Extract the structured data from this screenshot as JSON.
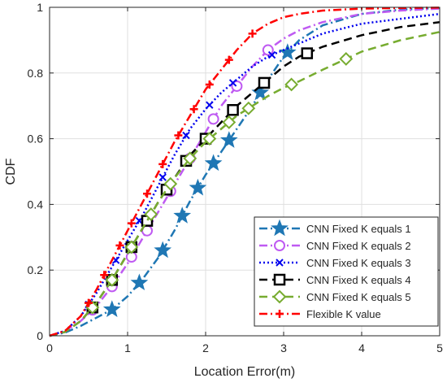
{
  "chart_data": {
    "type": "line",
    "title": "",
    "xlabel": "Location Error(m)",
    "ylabel": "CDF",
    "xlim": [
      0,
      5
    ],
    "ylim": [
      0,
      1
    ],
    "xticks": [
      "0",
      "1",
      "2",
      "3",
      "4",
      "5"
    ],
    "yticks": [
      "0",
      "0.2",
      "0.4",
      "0.6",
      "0.8",
      "1"
    ],
    "grid": true,
    "legend_position": "bottom-right",
    "series": [
      {
        "name": "CNN Fixed K equals 1",
        "color": "#1f77b4",
        "dash": "dash-dot",
        "marker": "star",
        "x": [
          0,
          0.2,
          0.4,
          0.6,
          0.8,
          1.0,
          1.2,
          1.4,
          1.6,
          1.8,
          2.0,
          2.2,
          2.4,
          2.6,
          2.8,
          3.0,
          3.2,
          3.5,
          4.0,
          4.5,
          5.0
        ],
        "y": [
          0,
          0.01,
          0.03,
          0.055,
          0.08,
          0.12,
          0.175,
          0.24,
          0.32,
          0.41,
          0.49,
          0.56,
          0.63,
          0.7,
          0.78,
          0.85,
          0.9,
          0.945,
          0.98,
          0.993,
          0.998
        ],
        "marker_x": [
          0.8,
          1.15,
          1.45,
          1.7,
          1.9,
          2.1,
          2.3,
          2.7,
          3.05
        ]
      },
      {
        "name": "CNN Fixed K equals 2",
        "color": "#bf5af2",
        "dash": "dash-dot",
        "marker": "circle",
        "x": [
          0,
          0.2,
          0.4,
          0.6,
          0.8,
          1.0,
          1.2,
          1.4,
          1.6,
          1.8,
          2.0,
          2.2,
          2.4,
          2.6,
          2.8,
          3.0,
          3.2,
          3.5,
          4.0,
          4.5,
          5.0
        ],
        "y": [
          0,
          0.015,
          0.045,
          0.09,
          0.15,
          0.22,
          0.3,
          0.38,
          0.46,
          0.54,
          0.62,
          0.7,
          0.76,
          0.82,
          0.87,
          0.905,
          0.93,
          0.955,
          0.98,
          0.99,
          0.996
        ],
        "marker_x": [
          0.55,
          0.8,
          1.05,
          1.25,
          1.55,
          1.8,
          2.1,
          2.4,
          2.8
        ]
      },
      {
        "name": "CNN Fixed K equals 3",
        "color": "#0000ee",
        "dash": "dot",
        "marker": "x",
        "x": [
          0,
          0.2,
          0.4,
          0.6,
          0.8,
          1.0,
          1.2,
          1.4,
          1.6,
          1.8,
          2.0,
          2.2,
          2.4,
          2.6,
          2.8,
          3.0,
          3.2,
          3.5,
          4.0,
          4.5,
          5.0
        ],
        "y": [
          0,
          0.015,
          0.06,
          0.13,
          0.21,
          0.29,
          0.37,
          0.46,
          0.55,
          0.63,
          0.69,
          0.74,
          0.78,
          0.82,
          0.85,
          0.87,
          0.89,
          0.92,
          0.95,
          0.965,
          0.98
        ],
        "marker_x": [
          0.5,
          0.85,
          1.15,
          1.45,
          1.75,
          2.05,
          2.35,
          2.85
        ]
      },
      {
        "name": "CNN Fixed K equals 4",
        "color": "#000000",
        "dash": "dash",
        "marker": "square",
        "x": [
          0,
          0.2,
          0.4,
          0.6,
          0.8,
          1.0,
          1.2,
          1.4,
          1.6,
          1.8,
          2.0,
          2.2,
          2.4,
          2.6,
          2.8,
          3.0,
          3.2,
          3.5,
          4.0,
          4.5,
          5.0
        ],
        "y": [
          0,
          0.012,
          0.045,
          0.1,
          0.17,
          0.25,
          0.33,
          0.41,
          0.48,
          0.55,
          0.6,
          0.65,
          0.7,
          0.74,
          0.78,
          0.82,
          0.85,
          0.88,
          0.915,
          0.94,
          0.955
        ],
        "marker_x": [
          0.55,
          0.8,
          1.05,
          1.25,
          1.5,
          1.75,
          2.0,
          2.35,
          2.75,
          3.3
        ]
      },
      {
        "name": "CNN Fixed K equals 5",
        "color": "#77ac30",
        "dash": "dash",
        "marker": "diamond",
        "x": [
          0,
          0.2,
          0.4,
          0.6,
          0.8,
          1.0,
          1.2,
          1.4,
          1.6,
          1.8,
          2.0,
          2.2,
          2.4,
          2.6,
          2.8,
          3.0,
          3.2,
          3.5,
          4.0,
          4.5,
          5.0
        ],
        "y": [
          0,
          0.012,
          0.045,
          0.1,
          0.17,
          0.25,
          0.33,
          0.41,
          0.48,
          0.54,
          0.59,
          0.63,
          0.67,
          0.7,
          0.73,
          0.755,
          0.775,
          0.81,
          0.865,
          0.9,
          0.925
        ],
        "marker_x": [
          0.55,
          0.8,
          1.05,
          1.3,
          1.55,
          1.8,
          2.05,
          2.3,
          2.55,
          3.1,
          3.8
        ]
      },
      {
        "name": "Flexible K value",
        "color": "#ff0000",
        "dash": "dash-dot",
        "marker": "plus",
        "x": [
          0,
          0.2,
          0.4,
          0.6,
          0.8,
          1.0,
          1.2,
          1.4,
          1.6,
          1.8,
          2.0,
          2.2,
          2.4,
          2.6,
          2.8,
          3.0,
          3.2,
          3.5,
          4.0,
          4.5,
          5.0
        ],
        "y": [
          0,
          0.015,
          0.06,
          0.14,
          0.23,
          0.32,
          0.41,
          0.5,
          0.59,
          0.67,
          0.75,
          0.81,
          0.87,
          0.92,
          0.95,
          0.97,
          0.98,
          0.99,
          0.996,
          0.998,
          0.999
        ],
        "marker_x": [
          0.5,
          0.7,
          0.9,
          1.05,
          1.25,
          1.45,
          1.65,
          1.85,
          2.05,
          2.3,
          2.6
        ]
      }
    ]
  }
}
